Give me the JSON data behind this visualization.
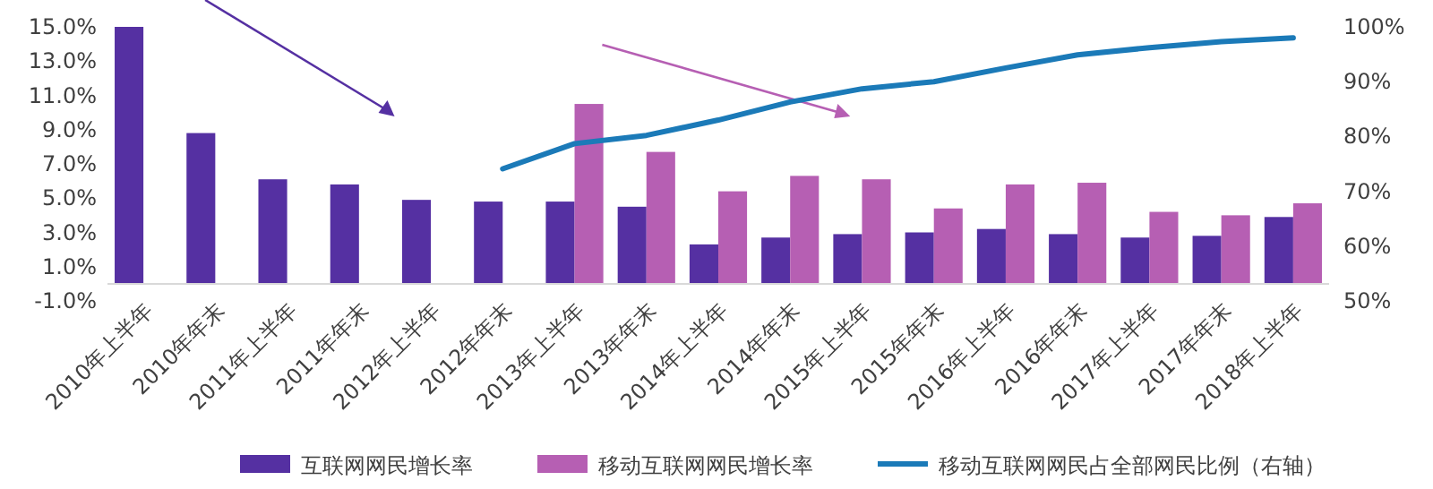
{
  "chart_data": {
    "type": "bar",
    "categories": [
      "2010年上半年",
      "2010年年末",
      "2011年上半年",
      "2011年年末",
      "2012年上半年",
      "2012年年末",
      "2013年上半年",
      "2013年年末",
      "2014年上半年",
      "2014年年末",
      "2015年上半年",
      "2015年年末",
      "2016年上半年",
      "2016年年末",
      "2017年上半年",
      "2017年年末",
      "2018年上半年"
    ],
    "series": [
      {
        "name": "互联网网民增长率",
        "color": "#5530a2",
        "values": [
          15.0,
          8.8,
          6.1,
          5.8,
          4.9,
          4.8,
          4.8,
          4.5,
          2.3,
          2.7,
          2.9,
          3.0,
          3.2,
          2.9,
          2.7,
          2.8,
          3.9
        ]
      },
      {
        "name": "移动互联网网民增长率",
        "color": "#b65fb3",
        "values": [
          null,
          null,
          null,
          null,
          null,
          null,
          10.5,
          7.7,
          5.4,
          6.3,
          6.1,
          4.4,
          5.8,
          5.9,
          4.2,
          4.0,
          4.7
        ]
      },
      {
        "name": "移动互联网网民占全部网民比例（右轴）",
        "type": "line",
        "axis": "y2",
        "color": "#1b7ab8",
        "values": [
          null,
          null,
          null,
          null,
          null,
          74.1,
          78.7,
          80.2,
          83.0,
          86.3,
          88.7,
          90.0,
          92.5,
          94.9,
          96.2,
          97.3,
          98.0
        ]
      }
    ],
    "ylim": [
      -1,
      15
    ],
    "yticks": [
      {
        "value": -1,
        "label": "-1.0%"
      },
      {
        "value": 1,
        "label": "1.0%"
      },
      {
        "value": 3,
        "label": "3.0%"
      },
      {
        "value": 5,
        "label": "5.0%"
      },
      {
        "value": 7,
        "label": "7.0%"
      },
      {
        "value": 9,
        "label": "9.0%"
      },
      {
        "value": 11,
        "label": "11.0%"
      },
      {
        "value": 13,
        "label": "13.0%"
      },
      {
        "value": 15,
        "label": "15.0%"
      }
    ],
    "y2lim": [
      50,
      100
    ],
    "y2ticks": [
      {
        "value": 50,
        "label": "50%"
      },
      {
        "value": 60,
        "label": "60%"
      },
      {
        "value": 70,
        "label": "70%"
      },
      {
        "value": 80,
        "label": "80%"
      },
      {
        "value": 90,
        "label": "90%"
      },
      {
        "value": 100,
        "label": "100%"
      }
    ],
    "legend": "bottom",
    "grid": false
  }
}
